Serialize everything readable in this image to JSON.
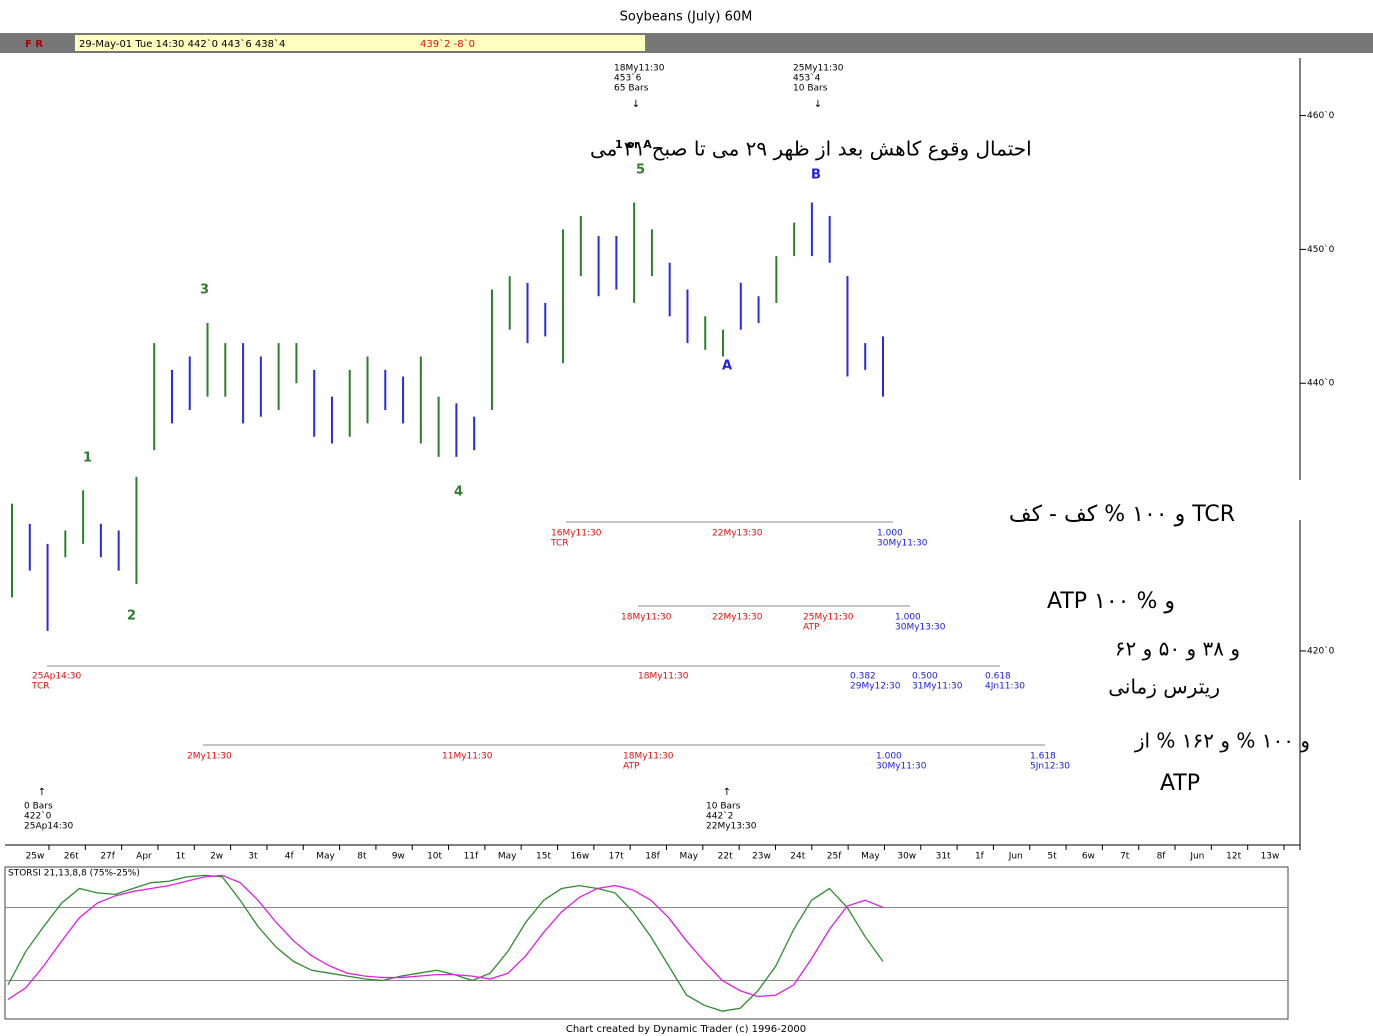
{
  "header": {
    "title": "Soybeans (July) 60M",
    "flags": "F R",
    "quote": "29-May-01 Tue 14:30  442`0  443`6  438`4",
    "last": "439`2  -8`0"
  },
  "footer": "Chart created by Dynamic Trader (c) 1996-2000",
  "chart_data": [
    {
      "type": "ohlc",
      "high": [
        431,
        429.5,
        428,
        429,
        432,
        429.5,
        429,
        433,
        443,
        441,
        442,
        444.5,
        443,
        443,
        442,
        443,
        443,
        441,
        439,
        441,
        442,
        441,
        440.5,
        442,
        439,
        438.5,
        437.5,
        447,
        448,
        447.5,
        446,
        451.5,
        452.5,
        451,
        451,
        453.5,
        451.5,
        449,
        447,
        445,
        444,
        447.5,
        446.5,
        449.5,
        452,
        453.5,
        452.5,
        448,
        443,
        443.5
      ],
      "low": [
        424,
        426,
        421.5,
        427,
        428,
        427,
        426,
        425,
        435,
        437,
        438,
        439,
        439,
        437,
        437.5,
        438,
        440,
        436,
        435.5,
        436,
        437,
        438,
        437,
        435.5,
        434.5,
        434.5,
        435,
        438,
        444,
        443,
        443.5,
        441.5,
        448,
        446.5,
        447,
        446,
        448,
        445,
        443,
        442.5,
        442,
        444,
        444.5,
        446,
        449.5,
        449.5,
        449,
        440.5,
        441,
        439
      ],
      "colors": [
        "#2e7d2e",
        "#2b2bdd",
        "#2b2bdd",
        "#2e7d2e",
        "#2e7d2e",
        "#2b2bdd",
        "#2b2bdd",
        "#2e7d2e",
        "#2e7d2e",
        "#2b2bdd",
        "#2b2bdd",
        "#2e7d2e",
        "#2e7d2e",
        "#2b2bdd",
        "#2b2bdd",
        "#2e7d2e",
        "#2e7d2e",
        "#2b2bdd",
        "#2b2bdd",
        "#2e7d2e",
        "#2e7d2e",
        "#2b2bdd",
        "#2b2bdd",
        "#2e7d2e",
        "#2e7d2e",
        "#2b2bdd",
        "#2b2bdd",
        "#2e7d2e",
        "#2e7d2e",
        "#2b2bdd",
        "#2b2bdd",
        "#2e7d2e",
        "#2e7d2e",
        "#2b2bdd",
        "#2b2bdd",
        "#2e7d2e",
        "#2e7d2e",
        "#2b2bdd",
        "#2b2bdd",
        "#2e7d2e",
        "#2e7d2e",
        "#2b2bdd",
        "#2b2bdd",
        "#2e7d2e",
        "#2e7d2e",
        "#2b2bdd",
        "#2b2bdd",
        "#2b2bdd",
        "#2b2bdd",
        "#2b2bdd"
      ],
      "ylim": [
        405.5,
        464.3
      ],
      "yticks": [
        {
          "value": 460,
          "label": "460`0"
        },
        {
          "value": 450,
          "label": "450`0"
        },
        {
          "value": 440,
          "label": "440`0"
        },
        {
          "value": 420,
          "label": "420`0"
        }
      ],
      "time_labels": [
        "25w",
        "26t",
        "27f",
        "Apr",
        "1t",
        "2w",
        "3t",
        "4f",
        "May",
        "8t",
        "9w",
        "10t",
        "11f",
        "May",
        "15t",
        "16w",
        "17t",
        "18f",
        "May",
        "22t",
        "23w",
        "24t",
        "25f",
        "May",
        "30w",
        "31t",
        "1f",
        "Jun",
        "5t",
        "6w",
        "7t",
        "8f",
        "Jun",
        "12t",
        "13w"
      ],
      "wave_labels": [
        "1",
        "2",
        "3",
        "4",
        "5",
        "1 or A",
        "A",
        "B"
      ],
      "note": "احتمال وقوع کاهش بعد از ظهر ۲۹ می تا صبح ۳۱ می",
      "markers": [
        [
          "18My11:30",
          "453`6",
          "65 Bars"
        ],
        [
          "25My11:30",
          "453`4",
          "10 Bars"
        ],
        [
          "0 Bars",
          "422`0",
          "25Ap14:30"
        ],
        [
          "10 Bars",
          "442`2",
          "22My13:30"
        ]
      ],
      "projections": [
        {
          "red": [
            "16My11:30",
            "TCR",
            "22My13:30"
          ],
          "blue": [
            "1.000",
            "30My11:30"
          ],
          "note": "و ۱۰۰ % کف - کف TCR"
        },
        {
          "red": [
            "18My11:30",
            "22My13:30",
            "25My11:30",
            "ATP"
          ],
          "blue": [
            "1.000",
            "30My13:30"
          ],
          "note": "ATP ۱۰۰ % و"
        },
        {
          "red": [
            "25Ap14:30",
            "TCR",
            "18My11:30"
          ],
          "blue": [
            "0.382",
            "29My12:30",
            "0.500",
            "31My11:30",
            "0.618",
            "4Jn11:30"
          ],
          "note": "و ۳۸ و ۵۰ و ۶۲",
          "note2": "ریترس زمانی"
        },
        {
          "red": [
            "2My11:30",
            "11My11:30",
            "18My11:30",
            "ATP"
          ],
          "blue": [
            "1.000",
            "30My11:30",
            "1.618",
            "5Jn12:30"
          ],
          "note": "و ۱۰۰ % و ۱۶۲ % از",
          "note2": "ATP"
        }
      ]
    },
    {
      "type": "line",
      "title": "STORSI 21,13,8,8 (75%-25%)",
      "ylim": [
        0,
        100
      ],
      "bands": [
        75,
        25
      ],
      "series": [
        {
          "color": "#2e8b2e",
          "values": [
            22,
            45,
            62,
            78,
            88,
            85,
            84,
            88,
            92,
            93,
            96,
            97,
            96,
            80,
            62,
            48,
            38,
            32,
            30,
            28,
            26,
            25,
            28,
            30,
            32,
            29,
            25,
            30,
            45,
            65,
            80,
            88,
            90,
            88,
            85,
            72,
            55,
            35,
            15,
            8,
            4,
            6,
            18,
            35,
            60,
            80,
            88,
            75,
            55,
            38
          ]
        },
        {
          "color": "#e020e0",
          "values": [
            12,
            20,
            35,
            52,
            68,
            78,
            83,
            86,
            88,
            90,
            93,
            96,
            97,
            92,
            80,
            65,
            52,
            42,
            35,
            30,
            28,
            27,
            27,
            28,
            29,
            29,
            28,
            26,
            30,
            42,
            58,
            72,
            82,
            88,
            90,
            87,
            80,
            68,
            52,
            38,
            25,
            18,
            14,
            15,
            22,
            40,
            60,
            76,
            80,
            75
          ]
        }
      ]
    }
  ]
}
